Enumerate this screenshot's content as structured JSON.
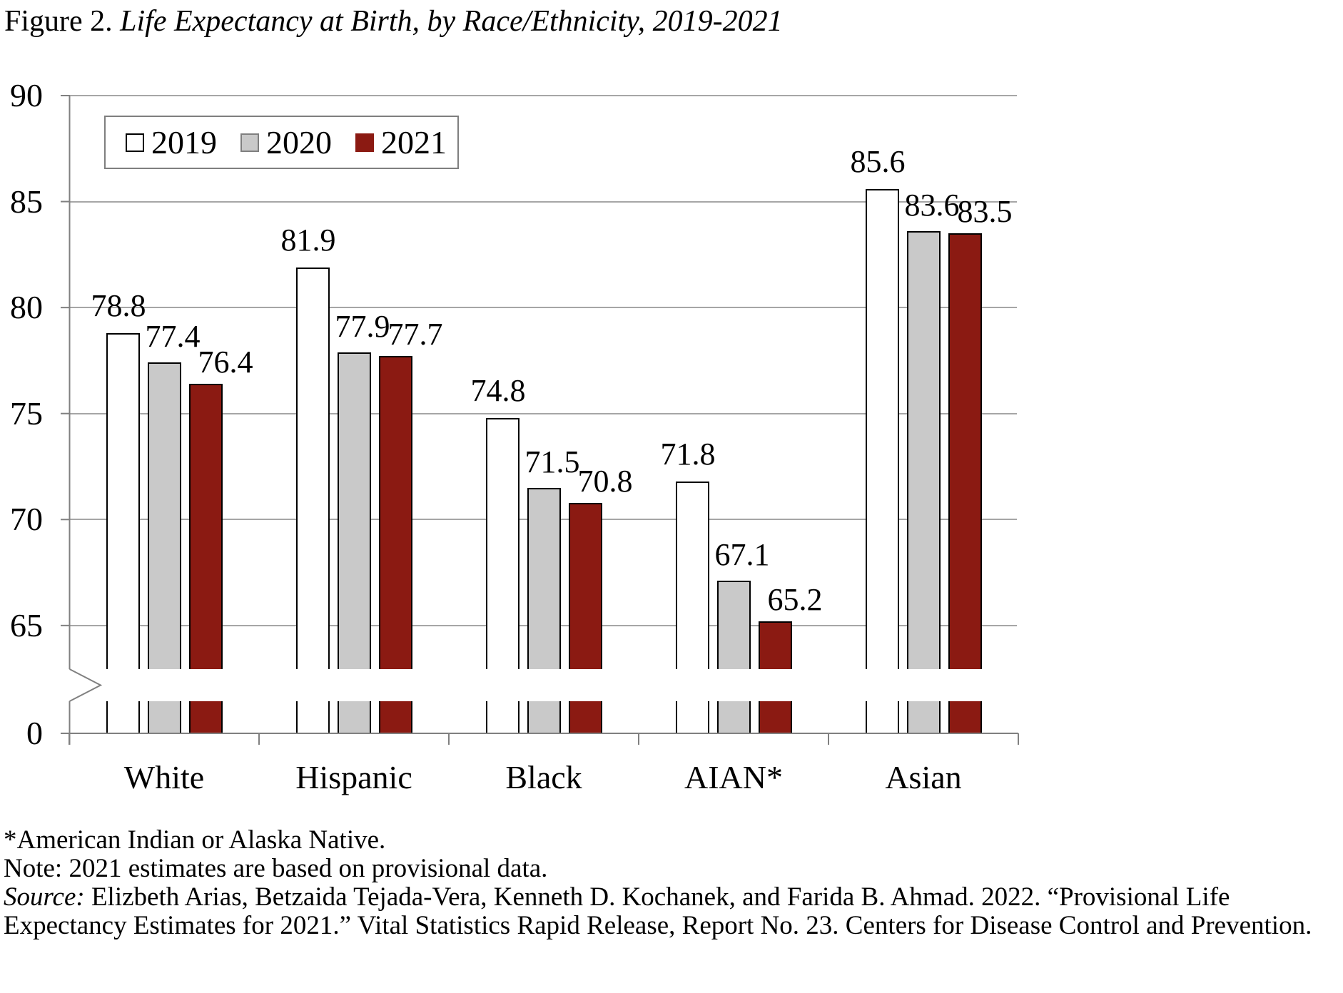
{
  "figure": {
    "title_prefix": "Figure 2. ",
    "title_italic": "Life Expectancy at Birth, by Race/Ethnicity, 2019-2021"
  },
  "chart_data": {
    "type": "bar",
    "title": "Figure 2. Life Expectancy at Birth, by Race/Ethnicity, 2019-2021",
    "categories": [
      "White",
      "Hispanic",
      "Black",
      "AIAN*",
      "Asian"
    ],
    "series": [
      {
        "name": "2019",
        "color": "#FFFFFF",
        "values": [
          78.8,
          81.9,
          74.8,
          71.8,
          85.6
        ]
      },
      {
        "name": "2020",
        "color": "#C9C9C9",
        "values": [
          77.4,
          77.9,
          71.5,
          67.1,
          83.6
        ]
      },
      {
        "name": "2021",
        "color": "#8B1A12",
        "values": [
          76.4,
          77.7,
          70.8,
          65.2,
          83.5
        ]
      }
    ],
    "y_axis": {
      "ticks": [
        0,
        65,
        70,
        75,
        80,
        85,
        90
      ],
      "broken_axis": true,
      "break_between": [
        0,
        65
      ]
    },
    "grid": true,
    "data_labels": true,
    "legend": {
      "position": "top-left-inside",
      "entries": [
        "2019",
        "2020",
        "2021"
      ]
    }
  },
  "colors": {
    "bar_2019": "#FFFFFF",
    "bar_2020": "#C9C9C9",
    "bar_2021": "#8B1A12",
    "gridline": "#A6A6A6",
    "axis": "#808080",
    "text": "#000000"
  },
  "footnotes": {
    "asterisk": "*American Indian or Alaska Native.",
    "note": "Note: 2021 estimates are based on provisional data.",
    "source_label": "Source:",
    "source_text": " Elizbeth Arias, Betzaida Tejada-Vera, Kenneth D. Kochanek, and Farida B. Ahmad. 2022. “Provisional Life Expectancy Estimates for 2021.” Vital Statistics Rapid Release, Report No. 23. Centers for Disease Control and Prevention."
  }
}
